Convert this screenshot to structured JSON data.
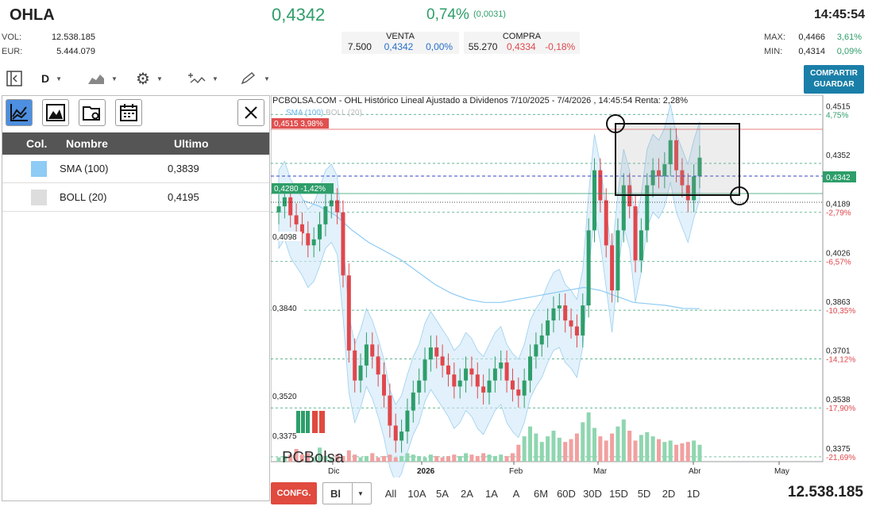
{
  "header": {
    "ticker": "OHLA",
    "price": "0,4342",
    "change_pct": "0,74%",
    "change_abs": "(0,0031)",
    "time": "14:45:54"
  },
  "stats_left": [
    {
      "label": "VOL:",
      "value": "12.538.185"
    },
    {
      "label": "EUR:",
      "value": "5.444.079"
    }
  ],
  "stats_right": [
    {
      "label": "MAX:",
      "value": "0,4466",
      "pct": "3,61%"
    },
    {
      "label": "MIN:",
      "value": "0,4314",
      "pct": "0,09%"
    }
  ],
  "venta": {
    "title": "VENTA",
    "qty": "7.500",
    "price": "0,4342",
    "pct": "0,00%"
  },
  "compra": {
    "title": "COMPRA",
    "qty": "55.270",
    "price": "0,4334",
    "pct": "-0,18%"
  },
  "toolbar": {
    "period": "D"
  },
  "share_button": {
    "line1": "COMPARTIR",
    "line2": "GUARDAR"
  },
  "indicator_panel": {
    "headers": [
      "Col.",
      "Nombre",
      "Ultimo"
    ],
    "rows": [
      {
        "name": "SMA (100)",
        "value": "0,3839",
        "color": "#8ecbf5"
      },
      {
        "name": "BOLL (20)",
        "value": "0,4195",
        "color": "#dddddd"
      }
    ]
  },
  "chart": {
    "title": "PCBOLSA.COM - OHL Histórico Lineal Ajustado a Dividenos 7/10/2025 - 7/4/2026 , 14:45:54 Renta: 2,28%",
    "legend_sma": "SMA (100)",
    "legend_boll": "BOLL (20)",
    "max_label": "0,4515  3,98%",
    "prev_label": "0,4280  -1,42%",
    "current_label": "0,4342",
    "left_labels": [
      "0,4098",
      "0,3840",
      "0,3520",
      "0,3375"
    ],
    "watermark": "PCBolsa"
  },
  "chart_data": {
    "type": "line",
    "title": "PCBOLSA.COM - OHL Histórico Lineal Ajustado a Dividenos 7/10/2025 - 7/4/2026 , 14:45:54 Renta: 2,28%",
    "xlabel": "",
    "ylabel": "",
    "x_ticks": [
      "Dic",
      "2026",
      "Feb",
      "Mar",
      "Abr",
      "May"
    ],
    "y_ticks": [
      {
        "value": "0,4515",
        "pct": "4,75%"
      },
      {
        "value": "0,4352",
        "pct": ""
      },
      {
        "value": "0,4189",
        "pct": "-2,79%"
      },
      {
        "value": "0,4026",
        "pct": "-6,57%"
      },
      {
        "value": "0,3863",
        "pct": "-10,35%"
      },
      {
        "value": "0,3701",
        "pct": "-14,12%"
      },
      {
        "value": "0,3538",
        "pct": "-17,90%"
      },
      {
        "value": "0,3375",
        "pct": "-21,69%"
      }
    ],
    "ylim": [
      0.333,
      0.455
    ],
    "close_series": [
      0.418,
      0.421,
      0.415,
      0.412,
      0.409,
      0.405,
      0.407,
      0.412,
      0.418,
      0.42,
      0.416,
      0.395,
      0.37,
      0.36,
      0.365,
      0.372,
      0.368,
      0.362,
      0.355,
      0.345,
      0.34,
      0.343,
      0.35,
      0.356,
      0.36,
      0.367,
      0.371,
      0.368,
      0.365,
      0.362,
      0.358,
      0.36,
      0.364,
      0.362,
      0.358,
      0.356,
      0.36,
      0.364,
      0.366,
      0.36,
      0.357,
      0.355,
      0.36,
      0.368,
      0.372,
      0.375,
      0.38,
      0.384,
      0.385,
      0.38,
      0.378,
      0.375,
      0.385,
      0.41,
      0.43,
      0.42,
      0.405,
      0.39,
      0.41,
      0.425,
      0.418,
      0.4,
      0.41,
      0.425,
      0.43,
      0.428,
      0.432,
      0.44,
      0.43,
      0.425,
      0.42,
      0.428,
      0.4342
    ],
    "sma100_series": [
      0.42,
      0.418,
      0.415,
      0.41,
      0.406,
      0.403,
      0.4,
      0.396,
      0.392,
      0.389,
      0.387,
      0.386,
      0.386,
      0.387,
      0.388,
      0.389,
      0.39,
      0.391,
      0.39,
      0.388,
      0.386,
      0.3855,
      0.385,
      0.384,
      0.3839
    ],
    "volume_series": [
      3,
      4,
      5,
      9,
      5,
      6,
      3,
      10,
      4,
      3,
      5,
      4,
      8,
      5,
      3,
      4,
      6,
      3,
      4,
      5,
      3,
      4,
      6,
      5,
      4,
      3,
      5,
      4,
      3,
      4,
      5,
      4,
      6,
      5,
      4,
      6,
      5,
      4,
      5,
      4,
      6,
      12,
      18,
      25,
      20,
      14,
      18,
      22,
      17,
      14,
      16,
      20,
      28,
      35,
      24,
      18,
      15,
      20,
      25,
      30,
      22,
      15,
      19,
      21,
      18,
      16,
      14,
      15,
      12,
      13,
      14,
      15,
      12
    ]
  },
  "bottom_bar": {
    "config_label": "CONFG.",
    "bl_label": "Bl",
    "ranges": [
      "All",
      "10A",
      "5A",
      "2A",
      "1A",
      "A",
      "6M",
      "60D",
      "30D",
      "15D",
      "5D",
      "2D",
      "1D"
    ],
    "volume": "12.538.185"
  }
}
